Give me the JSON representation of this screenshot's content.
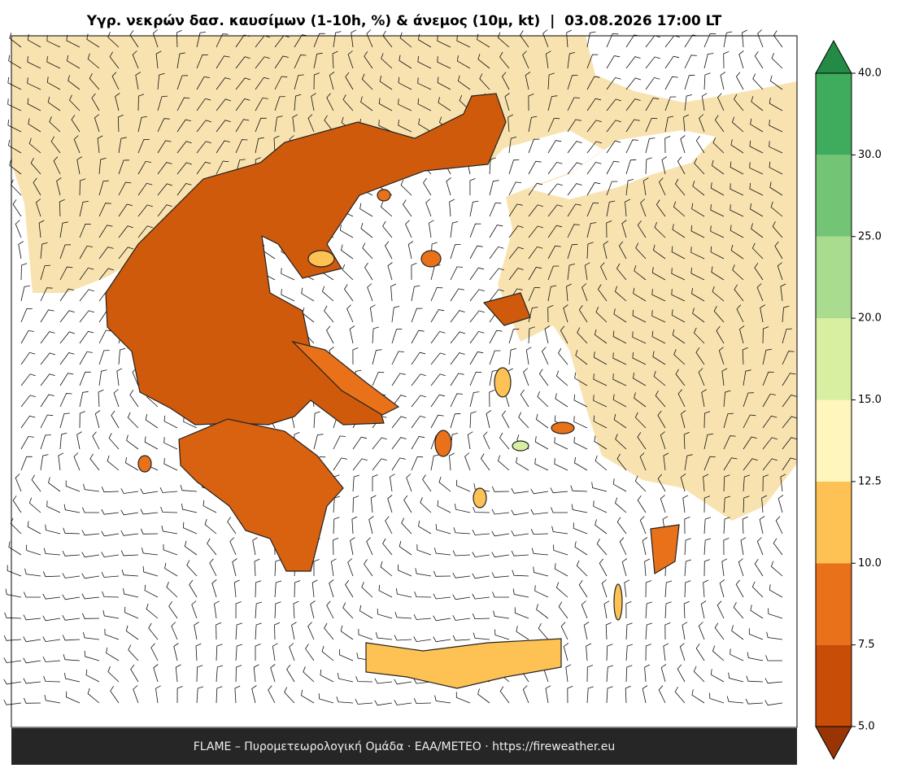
{
  "title": "Υγρ. νεκρών δασ. καυσίμων (1-10h, %) & άνεμος (10μ, kt)  |  03.08.2026 17:00 LT",
  "footer": "FLAME – Πυρομετεωρολογική Ομάδα · ΕΑΑ/METEO · https://fireweather.eu",
  "colorbar": {
    "ticks": [
      {
        "value": 5,
        "label": "5.0"
      },
      {
        "value": 7.5,
        "label": "7.5"
      },
      {
        "value": 10,
        "label": "10.0"
      },
      {
        "value": 12.5,
        "label": "12.5"
      },
      {
        "value": 15,
        "label": "15.0"
      },
      {
        "value": 20,
        "label": "20.0"
      },
      {
        "value": 25,
        "label": "25.0"
      },
      {
        "value": 30,
        "label": "30.0"
      },
      {
        "value": 40,
        "label": "40.0"
      }
    ],
    "colors": [
      "#c84d06",
      "#e8711a",
      "#fdc253",
      "#fff6bd",
      "#d8eea0",
      "#a9dc8e",
      "#74c476",
      "#3fab5c"
    ],
    "under_color": "#993404",
    "over_color": "#238b45"
  }
}
